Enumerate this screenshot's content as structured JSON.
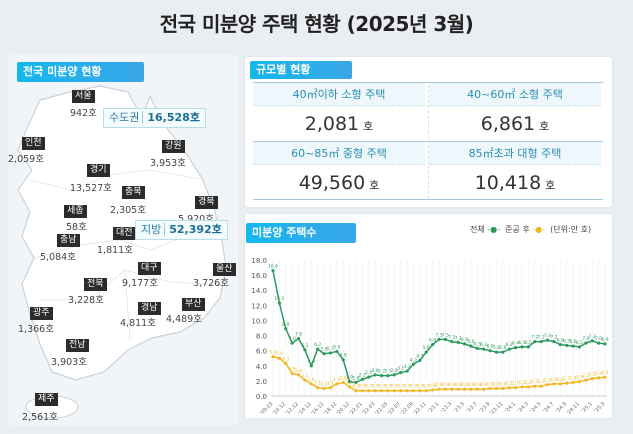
{
  "title": "전국 미분양 주택 현황  (2025년 3월)",
  "map_panel": {
    "badge": "전국 미분양 현황",
    "capital": {
      "label": "수도권",
      "value": "16,528호"
    },
    "local": {
      "label": "지방",
      "value": "52,392호"
    },
    "regions": [
      {
        "name": "서울",
        "value": "942호"
      },
      {
        "name": "인천",
        "value": "2,059호"
      },
      {
        "name": "경기",
        "value": "13,527호"
      },
      {
        "name": "강원",
        "value": "3,953호"
      },
      {
        "name": "충북",
        "value": "2,305호"
      },
      {
        "name": "경북",
        "value": "5,920호"
      },
      {
        "name": "세종",
        "value": "58호"
      },
      {
        "name": "대전",
        "value": "1,811호"
      },
      {
        "name": "충남",
        "value": "5,084호"
      },
      {
        "name": "대구",
        "value": "9,177호"
      },
      {
        "name": "울산",
        "value": "3,726호"
      },
      {
        "name": "전북",
        "value": "3,228호"
      },
      {
        "name": "경남",
        "value": "4,811호"
      },
      {
        "name": "부산",
        "value": "4,489호"
      },
      {
        "name": "광주",
        "value": "1,366호"
      },
      {
        "name": "전남",
        "value": "3,903호"
      },
      {
        "name": "제주",
        "value": "2,561호"
      }
    ]
  },
  "size_panel": {
    "badge": "규모별 현황",
    "unit": "호",
    "items": [
      {
        "label": "40㎡이하 소형 주택",
        "value": "2,081"
      },
      {
        "label": "40~60㎡ 소형 주택",
        "value": "6,861"
      },
      {
        "label": "60~85㎡ 중형 주택",
        "value": "49,560"
      },
      {
        "label": "85㎡초과 대형 주택",
        "value": "10,418"
      }
    ]
  },
  "chart_panel": {
    "badge": "미분양 주택수",
    "legend_total": "전체",
    "legend_post": "준공 후",
    "unit": "(단위:만 호)"
  },
  "colors": {
    "total": "#2e9a5e",
    "post": "#efb828",
    "accent": "#14b8ec"
  },
  "chart_data": {
    "type": "line",
    "ylim": [
      0,
      18
    ],
    "yticks": [
      "0.0",
      "2.0",
      "4.0",
      "6.0",
      "8.0",
      "10.0",
      "12.0",
      "14.0",
      "16.0",
      "18.0"
    ],
    "x": [
      "'09.03",
      "'09.12",
      "'10.12",
      "'11.12",
      "'12.12",
      "'13.12",
      "'14.12",
      "'15.12",
      "'16.12",
      "'17.12",
      "'18.12",
      "'19.12",
      "'20.12",
      "'21.12",
      "'22.01",
      "'22.02",
      "'22.03",
      "'22.04",
      "'22.05",
      "'22.06",
      "'22.07",
      "'22.08",
      "'22.09",
      "'22.10",
      "'22.11",
      "'22.12",
      "'23.1",
      "'23.2",
      "'23.3",
      "'23.4",
      "'23.5",
      "'23.6",
      "'23.7",
      "'23.8",
      "'23.9",
      "'23.10",
      "'23.11",
      "'23.12",
      "'24.1",
      "'24.2",
      "'24.3",
      "'24.4",
      "'24.5",
      "'24.6",
      "'24.7",
      "'24.8",
      "'24.9",
      "'24.10",
      "'24.11",
      "'24.12",
      "'25.1",
      "'25.2",
      "'25.3"
    ],
    "xtick_labels": [
      "'09.03",
      "'10.12",
      "'12.12",
      "'14.12",
      "'16.12",
      "'18.12",
      "'20.12",
      "'22.01",
      "'22.03",
      "'22.05",
      "'22.07",
      "'22.09",
      "'22.11",
      "'23.1",
      "'23.3",
      "'23.5",
      "'23.7",
      "'23.9",
      "'23.11",
      "'24.1",
      "'24.3",
      "'24.5",
      "'24.7",
      "'24.9",
      "'24.11",
      "'25.1",
      "'25.3"
    ],
    "series": [
      {
        "name": "전체",
        "values": [
          16.6,
          12.3,
          8.9,
          7.0,
          7.6,
          6.1,
          4.0,
          6.2,
          5.6,
          5.7,
          5.9,
          4.8,
          1.9,
          1.8,
          2.2,
          2.5,
          2.8,
          2.7,
          2.7,
          2.8,
          3.1,
          3.3,
          4.2,
          4.7,
          5.8,
          6.8,
          7.5,
          7.5,
          7.2,
          7.1,
          6.9,
          6.6,
          6.3,
          6.2,
          6.0,
          5.8,
          5.8,
          6.2,
          6.4,
          6.5,
          6.5,
          7.2,
          7.2,
          7.4,
          7.2,
          6.8,
          6.7,
          6.6,
          6.5,
          7.0,
          7.3,
          7.0,
          6.9
        ]
      },
      {
        "name": "준공 후",
        "values": [
          5.2,
          5.0,
          4.3,
          3.0,
          2.8,
          2.1,
          1.6,
          1.1,
          1.0,
          1.1,
          1.6,
          1.8,
          1.2,
          0.7,
          0.7,
          0.7,
          0.7,
          0.7,
          0.7,
          0.7,
          0.7,
          0.7,
          0.7,
          0.7,
          0.7,
          0.8,
          0.9,
          0.9,
          0.9,
          0.9,
          0.9,
          0.9,
          0.9,
          0.9,
          1.0,
          1.0,
          1.0,
          1.1,
          1.1,
          1.2,
          1.2,
          1.3,
          1.3,
          1.5,
          1.6,
          1.6,
          1.7,
          1.8,
          1.9,
          2.1,
          2.3,
          2.4,
          2.5
        ]
      }
    ]
  }
}
